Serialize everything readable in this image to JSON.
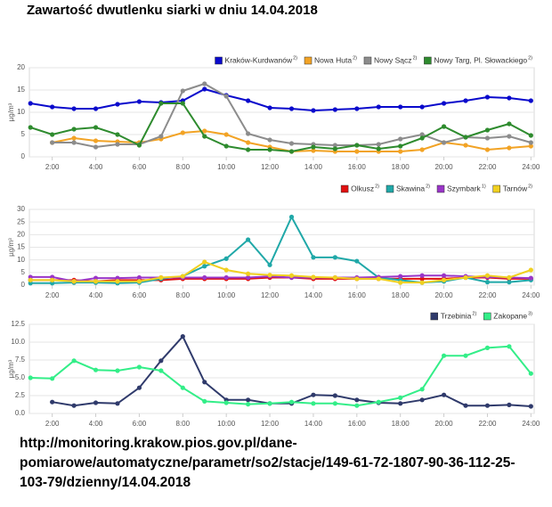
{
  "title": "Zawartość dwutlenku siarki w dniu 14.04.2018",
  "source": "http://monitoring.krakow.pios.gov.pl/dane-pomiarowe/automatyczne/parametr/so2/stacje/149-61-72-1807-90-36-112-25-103-79/dzienny/14.04.2018",
  "chart_data": [
    {
      "type": "line",
      "ylabel": "µg/m³",
      "grid": true,
      "legend": "top-right",
      "x": [
        1,
        2,
        3,
        4,
        5,
        6,
        7,
        8,
        9,
        10,
        11,
        12,
        13,
        14,
        15,
        16,
        17,
        18,
        19,
        20,
        21,
        22,
        23,
        24
      ],
      "xlim": [
        0.95,
        24.15
      ],
      "xticks": [
        {
          "value": 2,
          "label": "2:00"
        },
        {
          "value": 4,
          "label": "4:00"
        },
        {
          "value": 6,
          "label": "6:00"
        },
        {
          "value": 8,
          "label": "8:00"
        },
        {
          "value": 10,
          "label": "10:00"
        },
        {
          "value": 12,
          "label": "12:00"
        },
        {
          "value": 14,
          "label": "14:00"
        },
        {
          "value": 16,
          "label": "16:00"
        },
        {
          "value": 18,
          "label": "18:00"
        },
        {
          "value": 20,
          "label": "20:00"
        },
        {
          "value": 22,
          "label": "22:00"
        },
        {
          "value": 24,
          "label": "24:00"
        }
      ],
      "ylim": [
        0,
        20
      ],
      "yticks": [
        0,
        5,
        10,
        15,
        20
      ],
      "series": [
        {
          "name": "Kraków-Kurdwanów",
          "note": "2)",
          "color": "#0a0acc",
          "values": [
            12.0,
            11.2,
            10.8,
            10.8,
            11.8,
            12.4,
            12.2,
            12.6,
            15.2,
            13.8,
            12.6,
            11.0,
            10.8,
            10.4,
            10.6,
            10.8,
            11.2,
            11.2,
            11.2,
            12.0,
            12.6,
            13.4,
            13.2,
            12.6
          ]
        },
        {
          "name": "Nowa Huta",
          "note": "2)",
          "color": "#f2a325",
          "values": [
            null,
            3.2,
            4.2,
            3.6,
            3.4,
            3.2,
            4.0,
            5.4,
            5.8,
            5.0,
            3.2,
            2.2,
            1.2,
            1.4,
            1.2,
            1.2,
            1.2,
            1.2,
            1.6,
            3.2,
            2.6,
            1.6,
            2.0,
            2.4
          ]
        },
        {
          "name": "Nowy Sącz",
          "note": "2)",
          "color": "#8c8c8c",
          "values": [
            null,
            3.2,
            3.2,
            2.2,
            2.8,
            2.8,
            4.6,
            14.8,
            16.4,
            13.6,
            5.2,
            3.8,
            3.0,
            2.8,
            2.6,
            2.6,
            2.8,
            4.0,
            5.0,
            3.2,
            4.4,
            4.2,
            4.6,
            3.2
          ]
        },
        {
          "name": "Nowy Targ, Pl. Słowackiego",
          "note": "2)",
          "color": "#2e8b2e",
          "values": [
            6.6,
            5.0,
            6.2,
            6.6,
            5.0,
            2.6,
            12.0,
            12.0,
            4.6,
            2.4,
            1.6,
            1.6,
            1.2,
            2.2,
            1.8,
            2.6,
            1.8,
            2.4,
            4.2,
            6.8,
            4.4,
            6.0,
            7.4,
            4.8
          ]
        }
      ]
    },
    {
      "type": "line",
      "ylabel": "µg/m³",
      "grid": true,
      "legend": "top-right",
      "x": [
        1,
        2,
        3,
        4,
        5,
        6,
        7,
        8,
        9,
        10,
        11,
        12,
        13,
        14,
        15,
        16,
        17,
        18,
        19,
        20,
        21,
        22,
        23,
        24
      ],
      "xlim": [
        0.95,
        24.15
      ],
      "xticks": [
        {
          "value": 2,
          "label": "2:00"
        },
        {
          "value": 4,
          "label": "4:00"
        },
        {
          "value": 6,
          "label": "6:00"
        },
        {
          "value": 8,
          "label": "8:00"
        },
        {
          "value": 10,
          "label": "10:00"
        },
        {
          "value": 12,
          "label": "12:00"
        },
        {
          "value": 14,
          "label": "14:00"
        },
        {
          "value": 16,
          "label": "16:00"
        },
        {
          "value": 18,
          "label": "18:00"
        },
        {
          "value": 20,
          "label": "20:00"
        },
        {
          "value": 22,
          "label": "22:00"
        },
        {
          "value": 24,
          "label": "24:00"
        }
      ],
      "ylim": [
        0,
        30
      ],
      "yticks": [
        0,
        5,
        10,
        15,
        20,
        25,
        30
      ],
      "series": [
        {
          "name": "Olkusz",
          "note": "2)",
          "color": "#e01010",
          "values": [
            2,
            2,
            2,
            1.5,
            2,
            2,
            2,
            2.5,
            2.5,
            2.5,
            2.5,
            3,
            3,
            2.5,
            2.5,
            2.5,
            2.5,
            2.5,
            2.5,
            2.5,
            3,
            3,
            2.5,
            2.5
          ]
        },
        {
          "name": "Skawina",
          "note": "2)",
          "color": "#20a8a8",
          "values": [
            0.8,
            0.8,
            1.0,
            1.0,
            0.8,
            1.0,
            2.5,
            3.5,
            7.5,
            10.5,
            18,
            8,
            27,
            11,
            11,
            9.5,
            3,
            2,
            1,
            1.5,
            3,
            1.2,
            1.2,
            2
          ]
        },
        {
          "name": "Szymbark",
          "note": "1)",
          "color": "#9a35c8",
          "values": [
            3.2,
            3.2,
            1.5,
            2.8,
            2.8,
            3,
            3,
            3,
            3,
            3,
            3,
            3.5,
            3,
            3,
            3,
            3,
            3.2,
            3.5,
            3.8,
            3.8,
            3.5,
            3.2,
            3,
            2.8
          ]
        },
        {
          "name": "Tarnów",
          "note": "2)",
          "color": "#f0d020",
          "values": [
            2,
            2,
            1.5,
            1.5,
            1.5,
            1.5,
            3,
            3.5,
            9.2,
            6,
            4.5,
            4,
            3.8,
            3.2,
            3,
            2.5,
            2.5,
            1,
            1,
            2,
            3,
            3.8,
            3,
            6
          ]
        }
      ]
    },
    {
      "type": "line",
      "ylabel": "µg/m³",
      "grid": true,
      "legend": "top-right",
      "x": [
        1,
        2,
        3,
        4,
        5,
        6,
        7,
        8,
        9,
        10,
        11,
        12,
        13,
        14,
        15,
        16,
        17,
        18,
        19,
        20,
        21,
        22,
        23,
        24
      ],
      "xlim": [
        0.95,
        24.15
      ],
      "xticks": [
        {
          "value": 2,
          "label": "2:00"
        },
        {
          "value": 4,
          "label": "4:00"
        },
        {
          "value": 6,
          "label": "6:00"
        },
        {
          "value": 8,
          "label": "8:00"
        },
        {
          "value": 10,
          "label": "10:00"
        },
        {
          "value": 12,
          "label": "12:00"
        },
        {
          "value": 14,
          "label": "14:00"
        },
        {
          "value": 16,
          "label": "16:00"
        },
        {
          "value": 18,
          "label": "18:00"
        },
        {
          "value": 20,
          "label": "20:00"
        },
        {
          "value": 22,
          "label": "22:00"
        },
        {
          "value": 24,
          "label": "24:00"
        }
      ],
      "ylim": [
        0,
        12.5
      ],
      "yticks": [
        {
          "value": 0,
          "label": "0.0"
        },
        2.5,
        {
          "value": 5,
          "label": "5.0"
        },
        7.5,
        {
          "value": 10,
          "label": "10.0"
        },
        12.5
      ],
      "series": [
        {
          "name": "Trzebinia",
          "note": "2)",
          "color": "#2f3a6b",
          "values": [
            null,
            1.6,
            1.1,
            1.5,
            1.4,
            3.6,
            7.4,
            10.8,
            4.4,
            1.9,
            1.9,
            1.4,
            1.4,
            2.6,
            2.5,
            1.9,
            1.5,
            1.4,
            1.9,
            2.6,
            1.1,
            1.1,
            1.2,
            1.0
          ]
        },
        {
          "name": "Zakopane",
          "note": "3)",
          "color": "#33ee88",
          "values": [
            5.0,
            4.9,
            7.4,
            6.1,
            6.0,
            6.5,
            6.0,
            3.6,
            1.7,
            1.5,
            1.3,
            1.4,
            1.6,
            1.4,
            1.4,
            1.1,
            1.6,
            2.2,
            3.4,
            8.1,
            8.1,
            9.2,
            9.4,
            5.6
          ]
        }
      ]
    }
  ]
}
